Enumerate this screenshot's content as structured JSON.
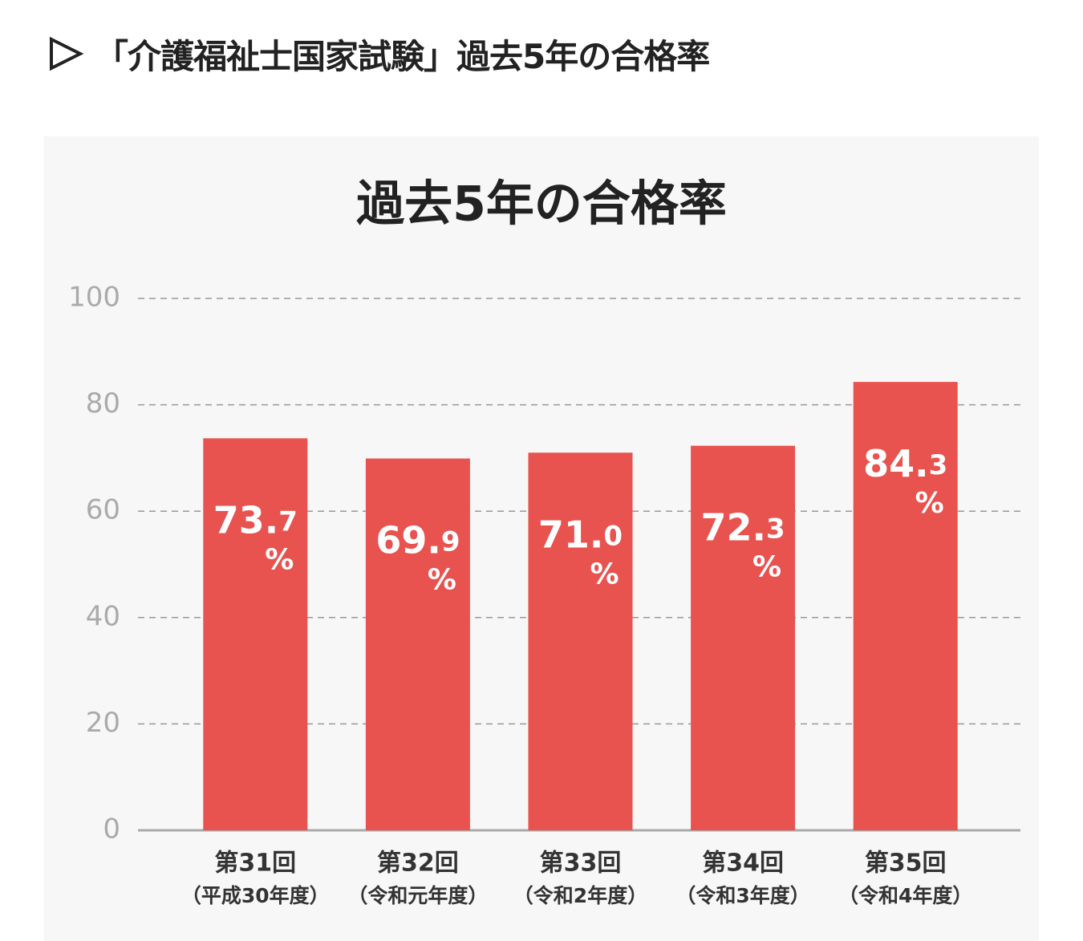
{
  "heading": "「介護福祉士国家試験」過去5年の合格率",
  "chart_data": {
    "type": "bar",
    "title": "過去5年の合格率",
    "categories": [
      [
        "第31回",
        "（平成30年度）"
      ],
      [
        "第32回",
        "（令和元年度）"
      ],
      [
        "第33回",
        "（令和2年度）"
      ],
      [
        "第34回",
        "（令和3年度）"
      ],
      [
        "第35回",
        "（令和4年度）"
      ]
    ],
    "values": [
      73.7,
      69.9,
      71.0,
      72.3,
      84.3
    ],
    "value_labels": [
      "73.7%",
      "69.9%",
      "71.0%",
      "72.3%",
      "84.3%"
    ],
    "color": "#e8534f",
    "ylim": [
      0,
      100
    ],
    "yticks": [
      0,
      20,
      40,
      60,
      80,
      100
    ],
    "grid": true
  }
}
